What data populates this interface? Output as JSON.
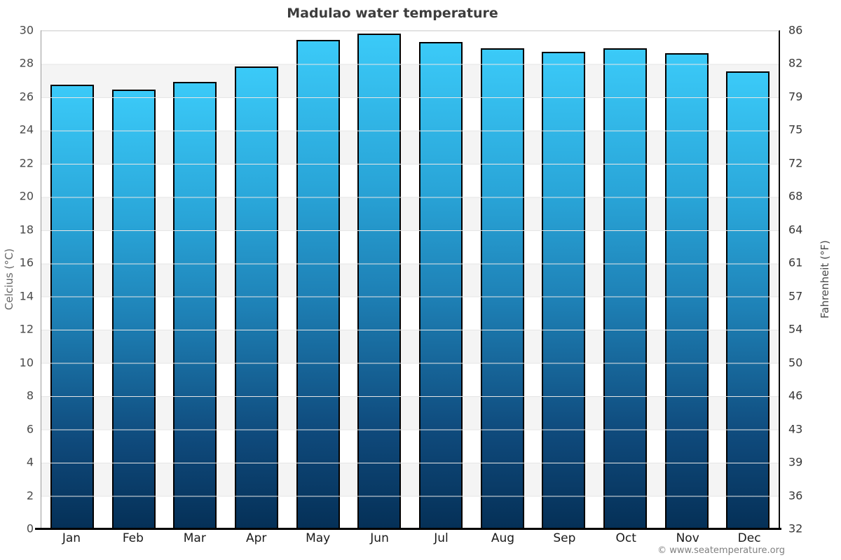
{
  "page": {
    "copyright": "© www.seatemperature.org"
  },
  "chart_data": {
    "type": "bar",
    "title": "Madulao water temperature",
    "categories": [
      "Jan",
      "Feb",
      "Mar",
      "Apr",
      "May",
      "Jun",
      "Jul",
      "Aug",
      "Sep",
      "Oct",
      "Nov",
      "Dec"
    ],
    "values": [
      26.7,
      26.4,
      26.9,
      27.8,
      29.4,
      29.8,
      29.3,
      28.9,
      28.7,
      28.9,
      28.6,
      27.5
    ],
    "unit": "°C",
    "ylabel_left": "Celcius (°C)",
    "ylabel_right": "Fahrenheit (°F)",
    "yticks_left": [
      30,
      28,
      26,
      24,
      22,
      20,
      18,
      16,
      14,
      12,
      10,
      8,
      6,
      4,
      2,
      0
    ],
    "yticks_right": [
      86,
      82,
      79,
      75,
      72,
      68,
      64,
      61,
      57,
      54,
      50,
      46,
      43,
      39,
      36,
      32
    ],
    "ylim": [
      0,
      30
    ],
    "grid": "horizontal-bands-every-2C",
    "legend": "none",
    "colors": {
      "bar_gradient_top": "#3bcaf8",
      "bar_gradient_mid": "#1e81b6",
      "bar_gradient_bottom": "#053057",
      "bar_border": "#000000",
      "band_light": "#ffffff",
      "band_gray": "#f4f4f4",
      "axis_line": "#000000",
      "title_text": "#3d3d3d"
    }
  }
}
